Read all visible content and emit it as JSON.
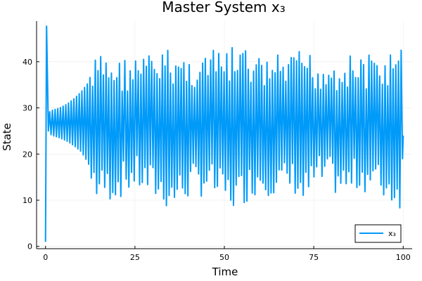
{
  "chart_data": {
    "type": "line",
    "title": "Master System x₃",
    "xlabel": "Time",
    "ylabel": "State",
    "xlim": [
      -2.5,
      102.5
    ],
    "ylim": [
      -0.5,
      48.8
    ],
    "x_ticks": [
      0,
      25,
      50,
      75,
      100
    ],
    "y_ticks": [
      0,
      10,
      20,
      30,
      40
    ],
    "x_tick_labels": [
      "0",
      "25",
      "50",
      "75",
      "100"
    ],
    "y_tick_labels": [
      "0",
      "10",
      "20",
      "30",
      "40"
    ],
    "grid": true,
    "legend_position": "bottom-right",
    "series": [
      {
        "name": "x₃",
        "color": "#009AF9",
        "oscillation_period": 0.75,
        "points": [
          [
            0.0,
            1.0
          ],
          [
            0.3,
            47.7
          ],
          [
            0.8,
            25.0
          ],
          [
            2.0,
            27.0
          ],
          [
            5.0,
            26.5
          ],
          [
            8.0,
            27.5
          ],
          [
            10.0,
            28.0
          ],
          [
            12.0,
            27.0
          ],
          [
            13.5,
            25.0
          ],
          [
            14.0,
            26.0
          ],
          [
            20.0,
            25.5
          ],
          [
            25.0,
            25.0
          ],
          [
            30.0,
            25.5
          ],
          [
            34.5,
            25.0
          ],
          [
            40.0,
            25.5
          ],
          [
            45.0,
            25.0
          ],
          [
            50.0,
            25.5
          ],
          [
            52.5,
            25.0
          ],
          [
            56.0,
            25.5
          ],
          [
            60.0,
            25.0
          ],
          [
            65.0,
            25.5
          ],
          [
            70.0,
            25.0
          ],
          [
            72.0,
            25.5
          ],
          [
            75.0,
            25.0
          ],
          [
            80.0,
            25.5
          ],
          [
            85.0,
            25.0
          ],
          [
            90.0,
            25.5
          ],
          [
            95.0,
            25.0
          ],
          [
            98.5,
            25.0
          ],
          [
            100.0,
            24.0
          ]
        ],
        "envelope": {
          "upper": [
            [
              0.8,
              29.0
            ],
            [
              2.0,
              29.5
            ],
            [
              4.0,
              30.0
            ],
            [
              6.0,
              30.8
            ],
            [
              8.0,
              32.0
            ],
            [
              10.0,
              33.5
            ],
            [
              12.0,
              35.5
            ],
            [
              13.0,
              38.0
            ],
            [
              14.0,
              41.5
            ],
            [
              17.0,
              42.0
            ],
            [
              20.0,
              41.0
            ],
            [
              25.0,
              41.5
            ],
            [
              30.0,
              42.0
            ],
            [
              35.0,
              43.0
            ],
            [
              40.0,
              41.5
            ],
            [
              45.0,
              42.5
            ],
            [
              50.0,
              42.5
            ],
            [
              53.0,
              43.5
            ],
            [
              56.0,
              43.0
            ],
            [
              60.0,
              41.0
            ],
            [
              65.0,
              41.5
            ],
            [
              70.0,
              41.5
            ],
            [
              72.0,
              43.5
            ],
            [
              76.0,
              41.0
            ],
            [
              80.0,
              41.5
            ],
            [
              84.0,
              41.5
            ],
            [
              88.0,
              42.0
            ],
            [
              92.0,
              41.5
            ],
            [
              96.0,
              42.0
            ],
            [
              99.5,
              43.0
            ]
          ],
          "lower": [
            [
              0.8,
              24.5
            ],
            [
              2.0,
              24.0
            ],
            [
              4.0,
              23.5
            ],
            [
              6.0,
              22.8
            ],
            [
              8.0,
              21.8
            ],
            [
              10.0,
              20.5
            ],
            [
              12.0,
              18.0
            ],
            [
              13.0,
              14.0
            ],
            [
              14.0,
              9.5
            ],
            [
              17.0,
              9.5
            ],
            [
              20.0,
              10.0
            ],
            [
              25.0,
              12.0
            ],
            [
              30.0,
              10.0
            ],
            [
              35.0,
              7.5
            ],
            [
              40.0,
              10.0
            ],
            [
              45.0,
              11.0
            ],
            [
              50.0,
              8.5
            ],
            [
              53.0,
              7.5
            ],
            [
              56.0,
              9.5
            ],
            [
              60.0,
              11.5
            ],
            [
              65.0,
              10.5
            ],
            [
              70.0,
              11.0
            ],
            [
              72.0,
              8.0
            ],
            [
              76.0,
              12.0
            ],
            [
              80.0,
              11.5
            ],
            [
              84.0,
              10.0
            ],
            [
              88.0,
              12.0
            ],
            [
              92.0,
              11.0
            ],
            [
              96.0,
              9.0
            ],
            [
              99.5,
              8.0
            ]
          ]
        }
      }
    ]
  }
}
